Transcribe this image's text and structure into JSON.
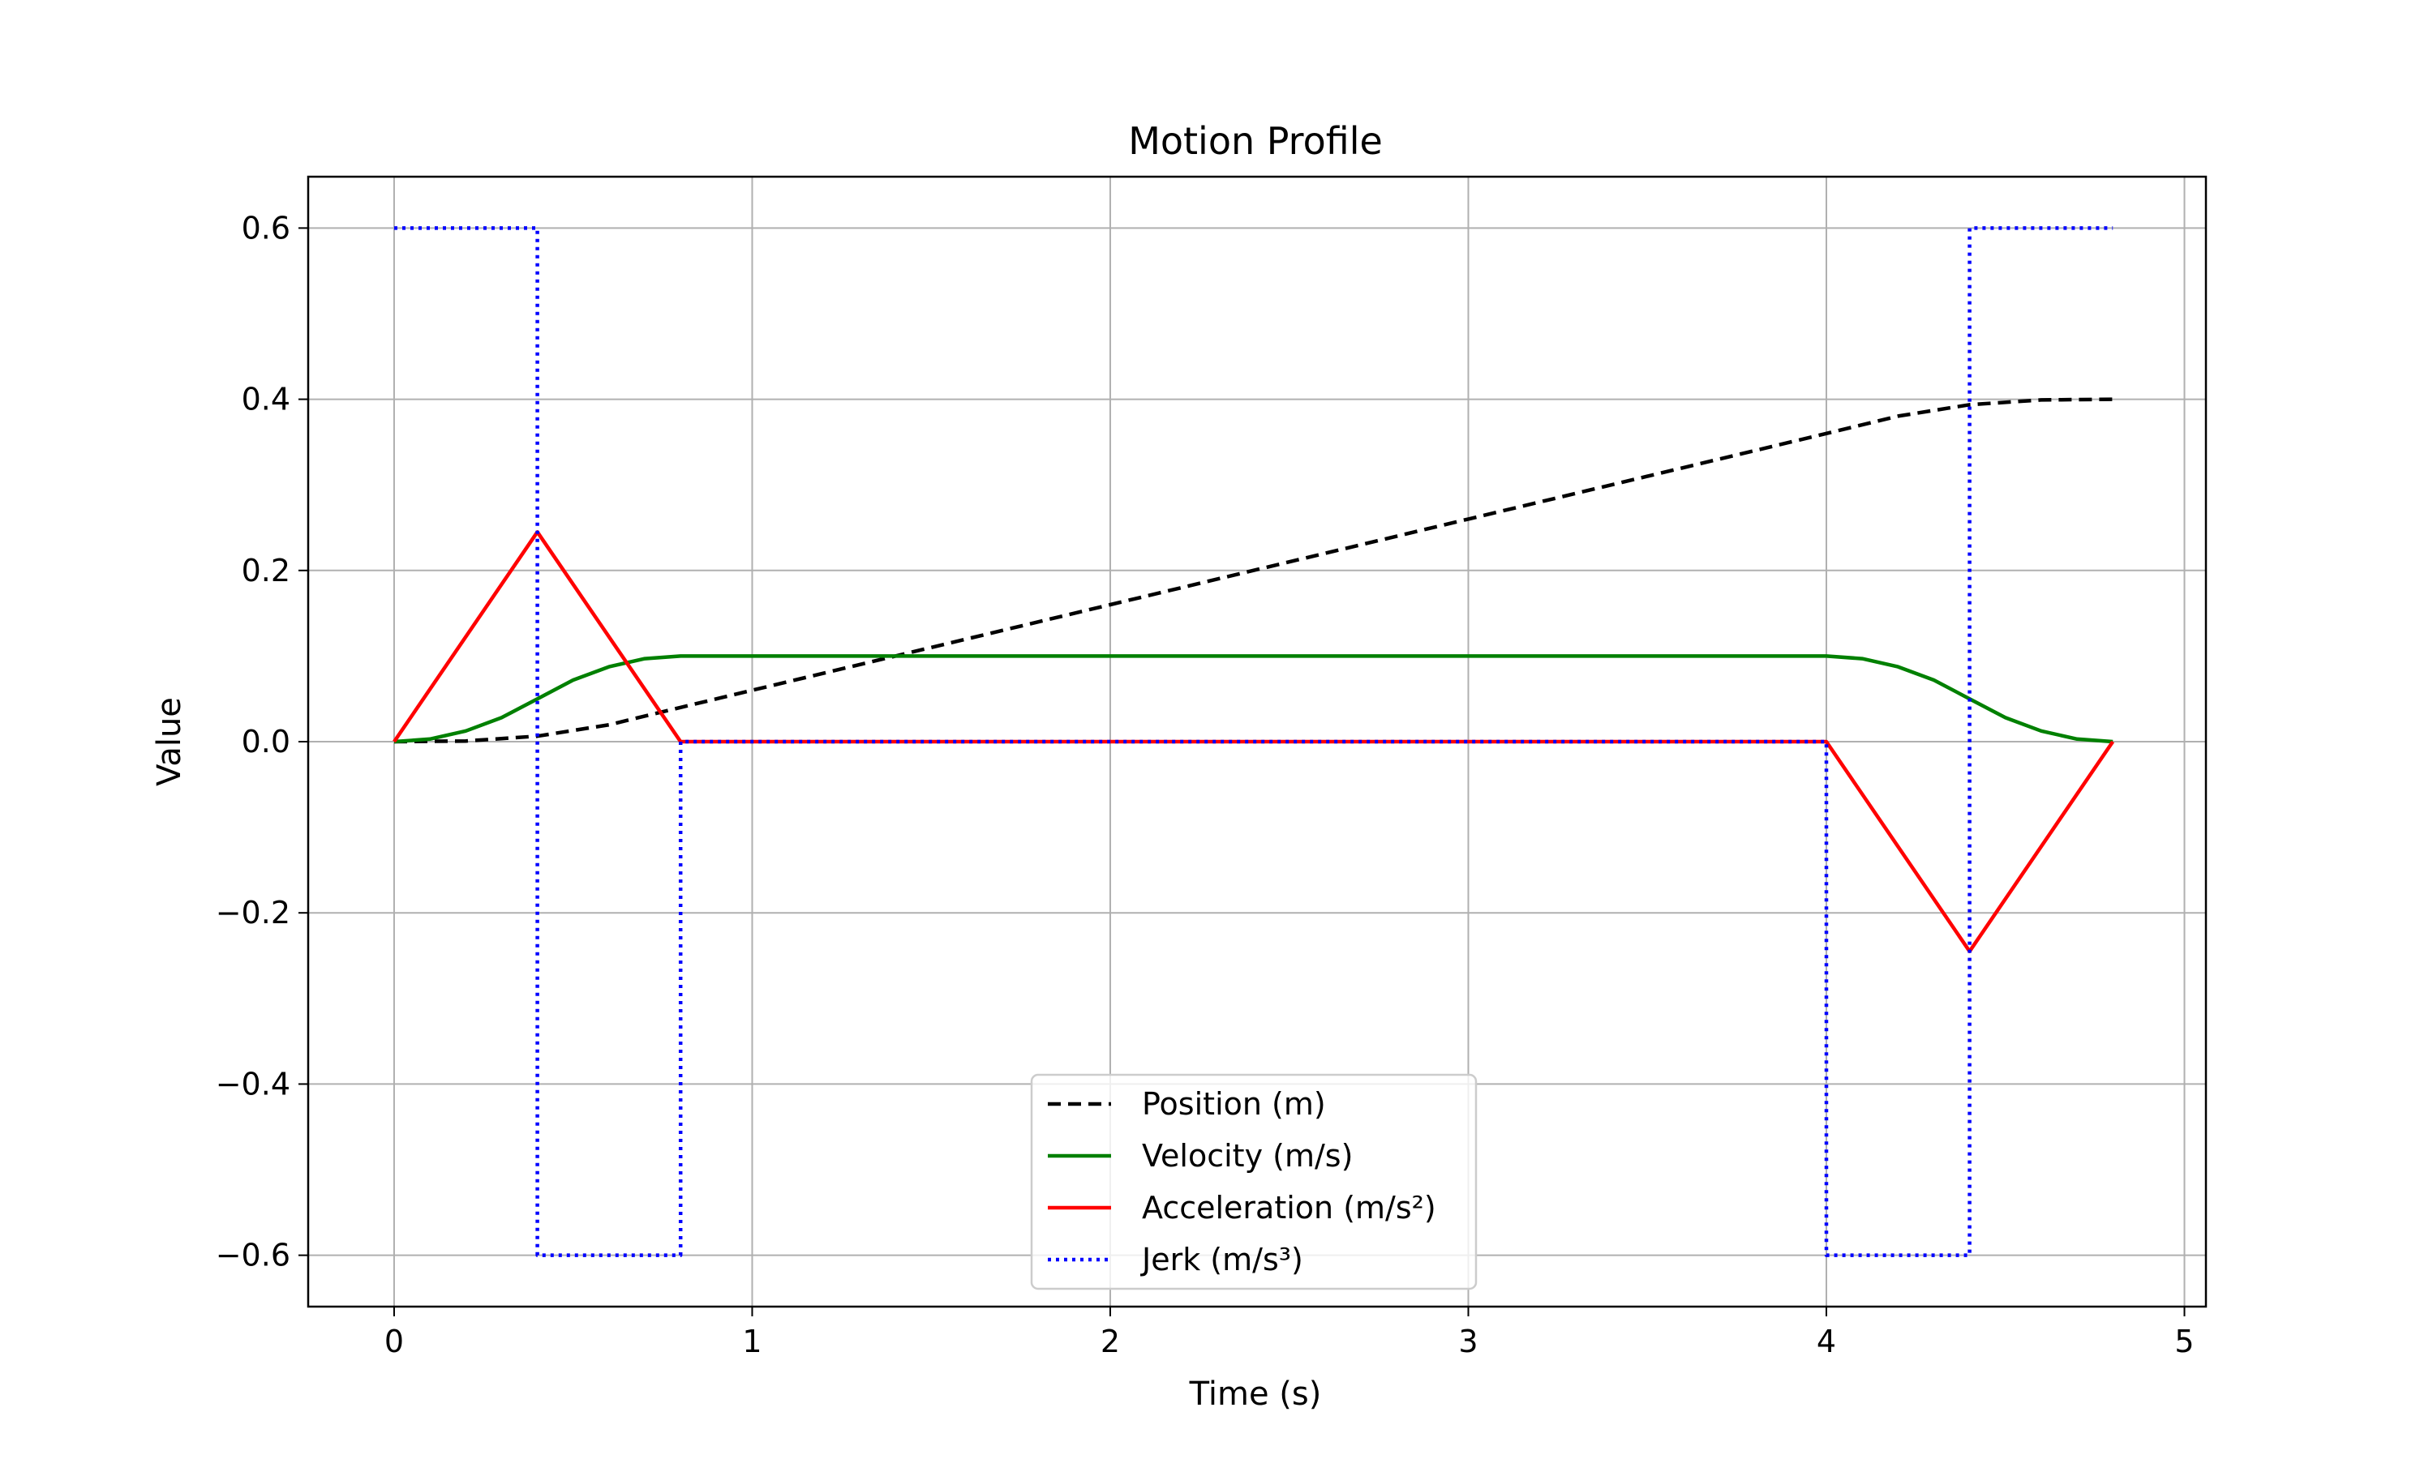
{
  "chart_data": {
    "type": "line",
    "title": "Motion Profile",
    "xlabel": "Time (s)",
    "ylabel": "Value",
    "xlim": [
      -0.24,
      5.06
    ],
    "ylim": [
      -0.66,
      0.66
    ],
    "x_ticks": [
      0,
      1,
      2,
      3,
      4,
      5
    ],
    "x_tick_labels": [
      "0",
      "1",
      "2",
      "3",
      "4",
      "5"
    ],
    "y_ticks": [
      0.6,
      0.4,
      0.2,
      0.0,
      -0.2,
      -0.4,
      -0.6
    ],
    "y_tick_labels": [
      "0.6",
      "0.4",
      "0.2",
      "0.0",
      "−0.2",
      "−0.4",
      "−0.6"
    ],
    "grid": true,
    "legend_position": "lower center",
    "series": [
      {
        "name": "Position (m)",
        "color": "#000000",
        "style": "dashed",
        "points": [
          [
            0,
            0.0
          ],
          [
            0.2,
            0.0008
          ],
          [
            0.4,
            0.0064
          ],
          [
            0.6,
            0.0197
          ],
          [
            0.8,
            0.04
          ],
          [
            1.0,
            0.06
          ],
          [
            1.5,
            0.11
          ],
          [
            2.0,
            0.16
          ],
          [
            2.5,
            0.21
          ],
          [
            3.0,
            0.26
          ],
          [
            3.5,
            0.31
          ],
          [
            4.0,
            0.36
          ],
          [
            4.2,
            0.3803
          ],
          [
            4.4,
            0.3936
          ],
          [
            4.6,
            0.3992
          ],
          [
            4.8,
            0.4
          ]
        ]
      },
      {
        "name": "Velocity (m/s)",
        "color": "#008000",
        "style": "solid",
        "points": [
          [
            0,
            0.0
          ],
          [
            0.1,
            0.003
          ],
          [
            0.2,
            0.0125
          ],
          [
            0.3,
            0.028
          ],
          [
            0.4,
            0.05
          ],
          [
            0.5,
            0.072
          ],
          [
            0.6,
            0.0875
          ],
          [
            0.7,
            0.097
          ],
          [
            0.8,
            0.1
          ],
          [
            4.0,
            0.1
          ],
          [
            4.1,
            0.097
          ],
          [
            4.2,
            0.0875
          ],
          [
            4.3,
            0.072
          ],
          [
            4.4,
            0.05
          ],
          [
            4.5,
            0.028
          ],
          [
            4.6,
            0.0125
          ],
          [
            4.7,
            0.003
          ],
          [
            4.8,
            0.0
          ]
        ]
      },
      {
        "name": "Acceleration (m/s²)",
        "color": "#ff0000",
        "style": "solid",
        "points": [
          [
            0,
            0.0
          ],
          [
            0.4,
            0.245
          ],
          [
            0.8,
            0.0
          ],
          [
            4.0,
            0.0
          ],
          [
            4.4,
            -0.245
          ],
          [
            4.8,
            0.0
          ]
        ]
      },
      {
        "name": "Jerk (m/s³)",
        "color": "#0000ff",
        "style": "dotted",
        "points": [
          [
            0,
            0.6
          ],
          [
            0.4,
            0.6
          ],
          [
            0.4,
            -0.6
          ],
          [
            0.8,
            -0.6
          ],
          [
            0.8,
            0.0
          ],
          [
            4.0,
            0.0
          ],
          [
            4.0,
            -0.6
          ],
          [
            4.4,
            -0.6
          ],
          [
            4.4,
            0.6
          ],
          [
            4.8,
            0.6
          ]
        ]
      }
    ]
  }
}
